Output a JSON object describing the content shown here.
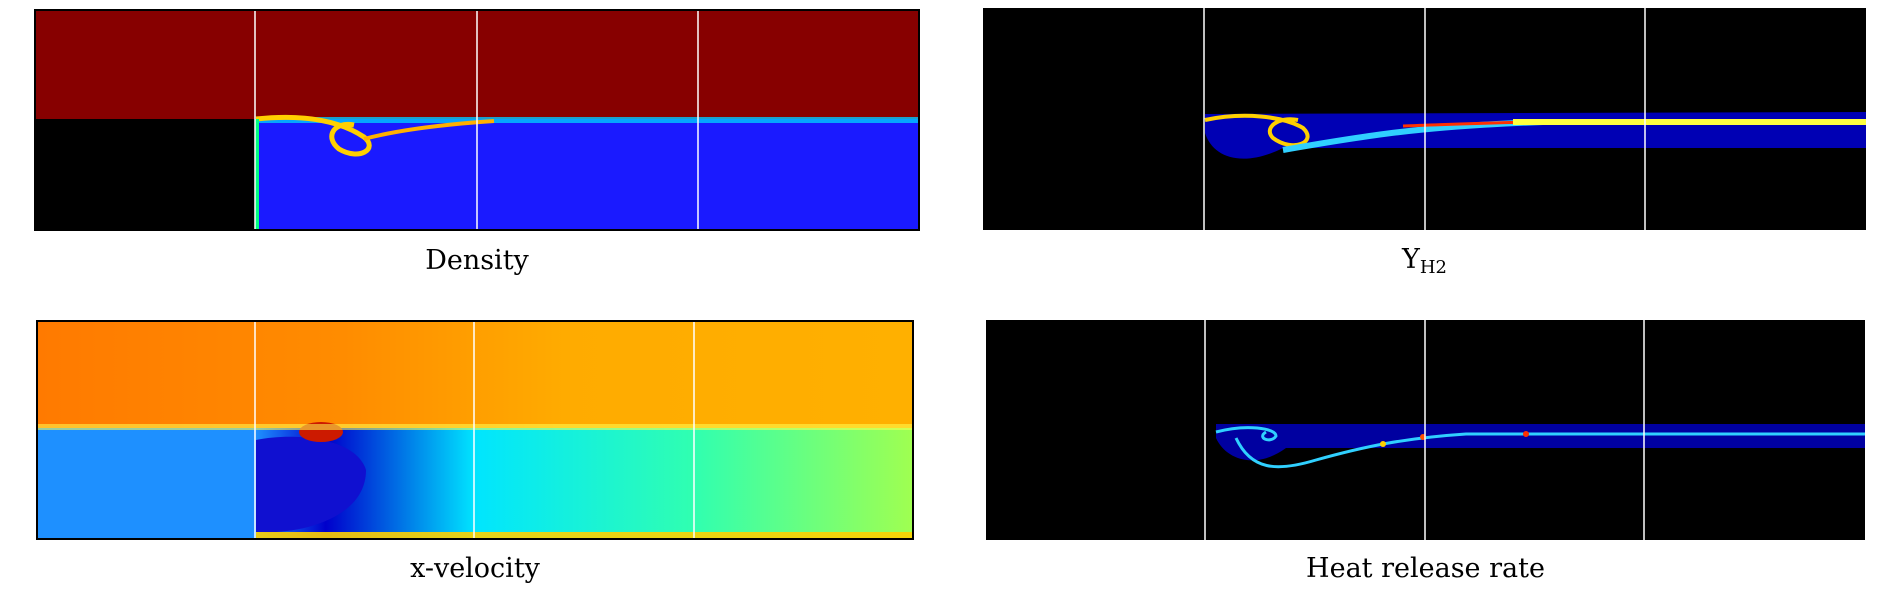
{
  "figure": {
    "panels": [
      {
        "id": "density",
        "caption": "Density"
      },
      {
        "id": "yh2",
        "caption": "Y",
        "caption_sub": "H2"
      },
      {
        "id": "xvel",
        "caption": "x-velocity"
      },
      {
        "id": "hrr",
        "caption": "Heat release rate"
      }
    ]
  },
  "colors": {
    "background": "#000000",
    "dark_red": "#870000",
    "blue": "#1a1aff",
    "light_blue": "#1e90ff",
    "orange": "#ff7a00",
    "amber": "#ffab00",
    "cyan": "#00e5ff",
    "green_yellow": "#9cff55",
    "grid_line": "#ffffff"
  }
}
